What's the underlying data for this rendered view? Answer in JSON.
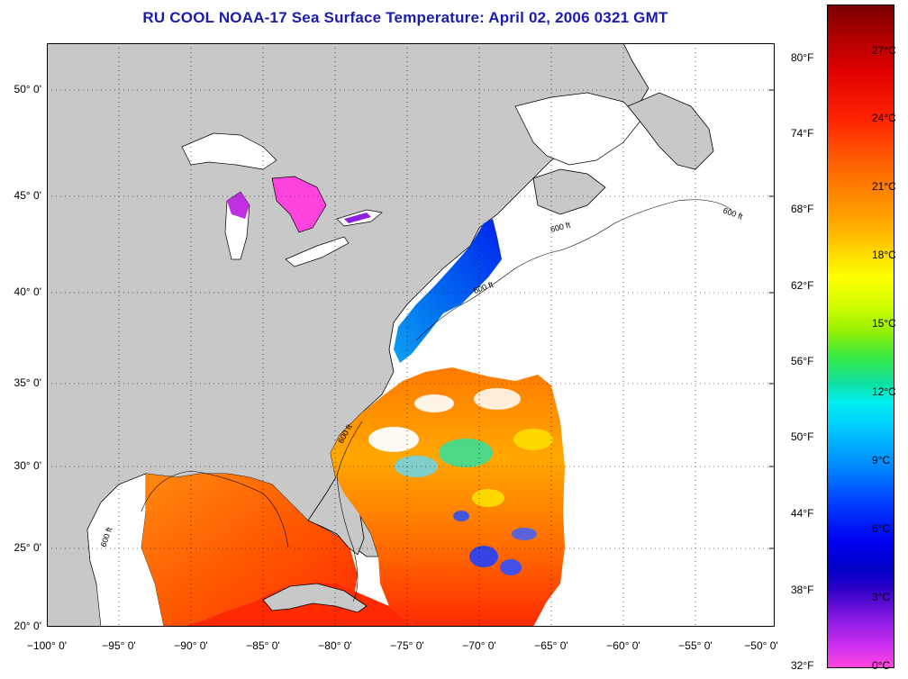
{
  "title": "RU COOL  NOAA-17  Sea Surface Temperature:  April 02, 2006 0321 GMT",
  "axes": {
    "lat_labels": [
      "50° 0'",
      "45° 0'",
      "40° 0'",
      "35° 0'",
      "30° 0'",
      "25° 0'",
      "20° 0'"
    ],
    "lon_labels": [
      "−100° 0'",
      "−95° 0'",
      "−90° 0'",
      "−85° 0'",
      "−80° 0'",
      "−75° 0'",
      "−70° 0'",
      "−65° 0'",
      "−60° 0'",
      "−55° 0'",
      "−50° 0'"
    ]
  },
  "map": {
    "land_color": "#c8c8c8",
    "ocean_nodata_color": "#ffffff",
    "isobath_label": "600 ft",
    "grid": "dotted"
  },
  "colorbar": {
    "fahrenheit": [
      "80°F",
      "74°F",
      "68°F",
      "62°F",
      "56°F",
      "50°F",
      "44°F",
      "38°F",
      "32°F"
    ],
    "celsius": [
      "27°C",
      "24°C",
      "21°C",
      "18°C",
      "15°C",
      "12°C",
      "9°C",
      "6°C",
      "3°C",
      "0°C"
    ]
  }
}
